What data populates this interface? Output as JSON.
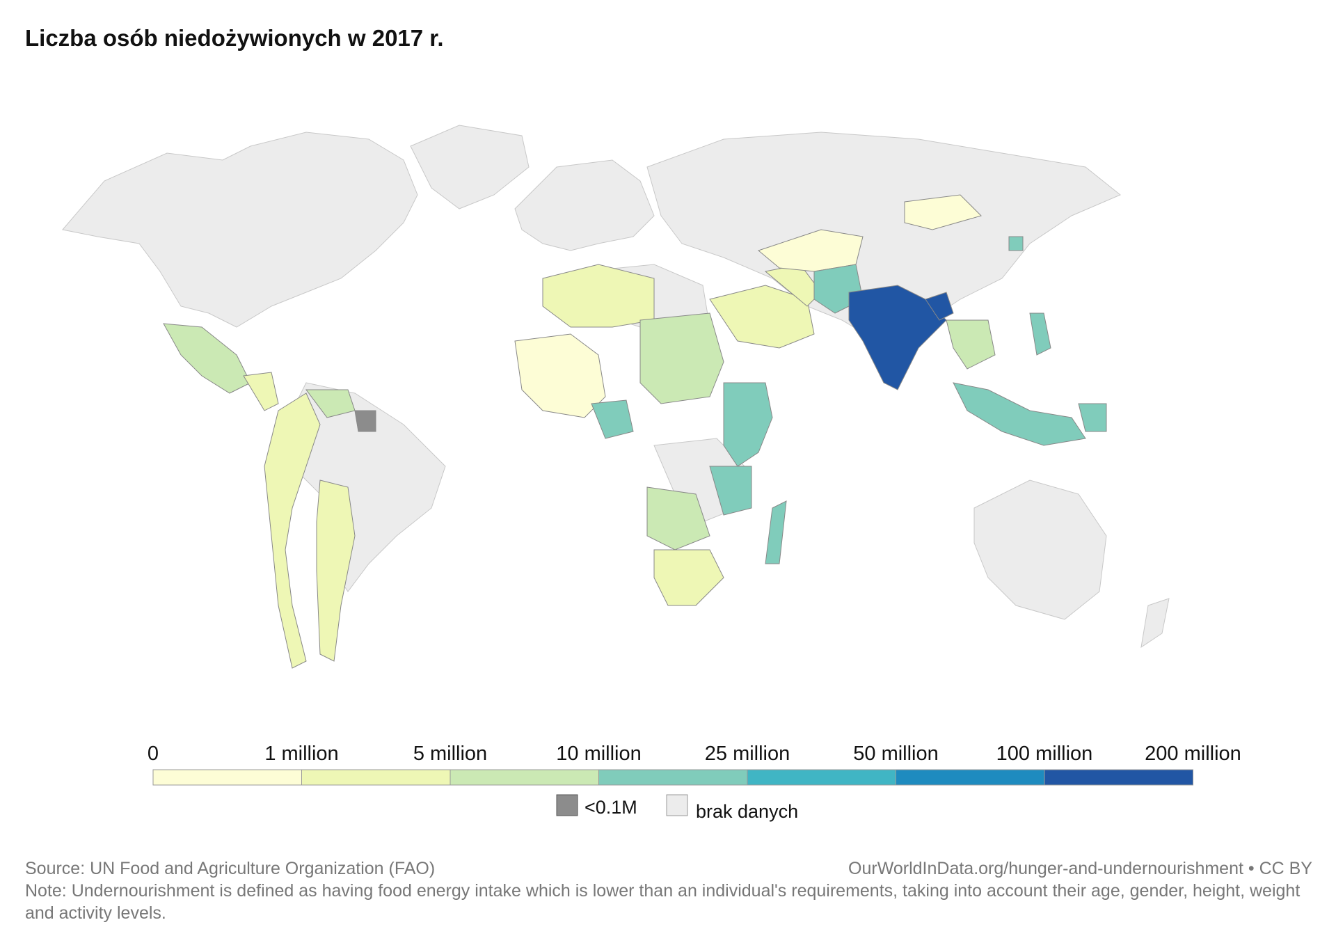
{
  "title": "Liczba osób niedożywionych w 2017 r.",
  "colors": {
    "nodata": "#ececec",
    "border": "#c8c8c8",
    "small": "#8c8c8c",
    "bins": [
      "#fdfdd6",
      "#eef7b5",
      "#cbe9b4",
      "#80ccbb",
      "#40b5c4",
      "#1e8bbf",
      "#2156a4"
    ]
  },
  "legend": {
    "ticks": [
      "0",
      "1 million",
      "5 million",
      "10 million",
      "25 million",
      "50 million",
      "100 million",
      "200 million"
    ],
    "small_label": "<0.1M",
    "nodata_label": "brak danych"
  },
  "footer": {
    "source": "Source: UN Food and Agriculture Organization (FAO)",
    "url": "OurWorldInData.org/hunger-and-undernourishment • CC BY",
    "note": "Note: Undernourishment is defined as having food energy intake which is lower than an individual's requirements, taking into account their age, gender, height, weight and activity levels."
  }
}
